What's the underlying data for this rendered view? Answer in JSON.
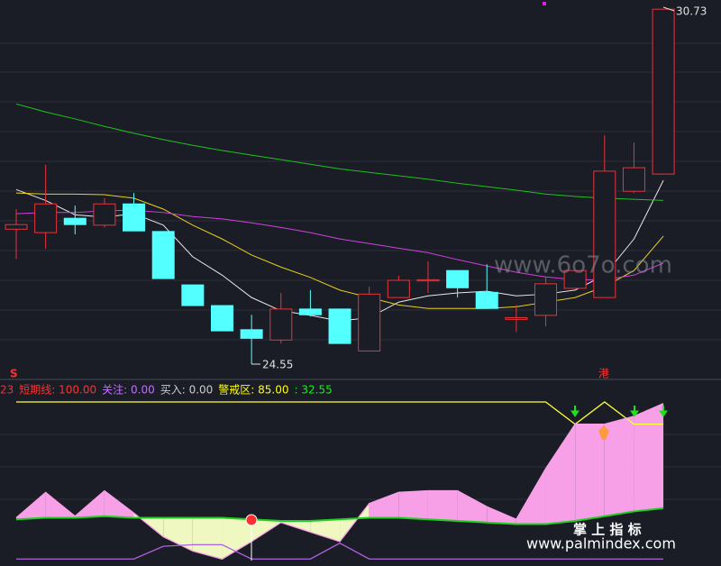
{
  "chart_data": [
    {
      "type": "candlestick",
      "open": [
        26.9,
        26.84,
        27.09,
        26.97,
        27.34,
        26.86,
        25.93,
        25.57,
        25.15,
        24.97,
        25.51,
        25.51,
        24.78,
        25.71,
        26.0,
        26.18,
        25.8,
        25.33,
        25.4,
        25.87,
        25.71,
        27.56,
        27.86
      ],
      "high": [
        27.25,
        28.02,
        27.31,
        27.44,
        27.53,
        26.86,
        25.93,
        25.57,
        25.41,
        25.79,
        25.84,
        25.51,
        25.9,
        26.09,
        26.34,
        26.18,
        26.29,
        25.58,
        26.07,
        26.18,
        28.53,
        28.41,
        30.73
      ],
      "low": [
        26.38,
        26.56,
        26.81,
        26.93,
        26.87,
        26.04,
        25.57,
        25.13,
        24.55,
        24.91,
        25.38,
        24.91,
        24.78,
        25.71,
        25.79,
        25.71,
        25.52,
        25.11,
        25.21,
        25.87,
        25.71,
        27.53,
        27.86
      ],
      "close": [
        26.98,
        27.34,
        26.98,
        27.34,
        26.87,
        26.04,
        25.57,
        25.13,
        25.0,
        25.51,
        25.41,
        24.91,
        25.77,
        26.01,
        26.02,
        25.88,
        25.52,
        25.36,
        25.95,
        26.18,
        27.91,
        27.97,
        30.73
      ],
      "up_color": "#e8333a",
      "down_color": "#54ffff",
      "ylim": [
        24.3,
        30.89
      ],
      "lines": [
        {
          "color": "#e8e8e8",
          "values": [
            27.59,
            27.4,
            27.15,
            27.11,
            27.17,
            26.97,
            26.42,
            26.1,
            25.71,
            25.48,
            25.4,
            25.3,
            25.36,
            25.63,
            25.74,
            25.79,
            25.82,
            25.74,
            25.77,
            25.84,
            26.1,
            26.73,
            27.75
          ]
        },
        {
          "color": "#e8d020",
          "values": [
            27.53,
            27.51,
            27.51,
            27.5,
            27.44,
            27.25,
            26.97,
            26.73,
            26.45,
            26.24,
            26.06,
            25.84,
            25.71,
            25.58,
            25.52,
            25.52,
            25.52,
            25.55,
            25.63,
            25.71,
            25.9,
            26.18,
            26.78
          ]
        },
        {
          "color": "#d040e0",
          "values": [
            27.17,
            27.19,
            27.19,
            27.22,
            27.23,
            27.19,
            27.12,
            27.08,
            27.01,
            26.93,
            26.84,
            26.73,
            26.65,
            26.57,
            26.49,
            26.37,
            26.26,
            26.15,
            26.07,
            26.02,
            26.02,
            26.1,
            26.31
          ]
        },
        {
          "color": "#20c020",
          "values": [
            29.08,
            28.94,
            28.82,
            28.69,
            28.57,
            28.46,
            28.36,
            28.27,
            28.19,
            28.11,
            28.03,
            27.95,
            27.89,
            27.83,
            27.77,
            27.7,
            27.64,
            27.58,
            27.51,
            27.47,
            27.44,
            27.42,
            27.4
          ]
        }
      ],
      "annotations": [
        "30.73",
        "24.55",
        "S",
        "港"
      ]
    },
    {
      "type": "line",
      "ylim": [
        0,
        100
      ],
      "legend": [
        {
          "text": "23",
          "color": "#e8333a"
        },
        {
          "text": "短期线: 100.00",
          "color": "#ff3030"
        },
        {
          "text": "关注: 0.00",
          "color": "#c070ff"
        },
        {
          "text": "买入: 0.00",
          "color": "#cccccc"
        },
        {
          "text": "警戒区: 85.00",
          "color": "#ffff00"
        },
        {
          "text": ": 32.55",
          "color": "#00ff00"
        }
      ],
      "series": [
        {
          "color": "#ffff40",
          "values": [
            100,
            100,
            100,
            100,
            100,
            100,
            100,
            100,
            100,
            100,
            100,
            100,
            100,
            100,
            100,
            100,
            100,
            100,
            100,
            86,
            100,
            86,
            86
          ]
        },
        {
          "color": "#f7a0e8",
          "values": [
            27,
            43,
            28,
            44,
            30,
            15,
            6,
            1,
            12,
            24,
            18,
            12,
            36,
            43,
            44,
            44,
            34,
            26,
            58,
            86,
            86,
            91,
            99
          ]
        },
        {
          "color": "#20d020",
          "values": [
            26,
            27,
            27,
            28,
            27,
            27,
            27,
            27,
            26,
            25,
            25,
            26,
            27,
            27,
            26,
            25,
            24,
            23,
            23,
            25,
            28,
            31,
            33
          ]
        },
        {
          "color": "#b060e0",
          "values": [
            1,
            1,
            1,
            1,
            1,
            9,
            10,
            10,
            1,
            1,
            1,
            11,
            1,
            1,
            1,
            1,
            1,
            1,
            1,
            1,
            1,
            1,
            1
          ]
        }
      ],
      "fill_colors": [
        "#f7a0e8",
        "#eef8c0"
      ]
    }
  ],
  "watermarks": [
    "www.6o7o.com",
    "掌 上 指 标",
    "www.palmindex.com"
  ]
}
